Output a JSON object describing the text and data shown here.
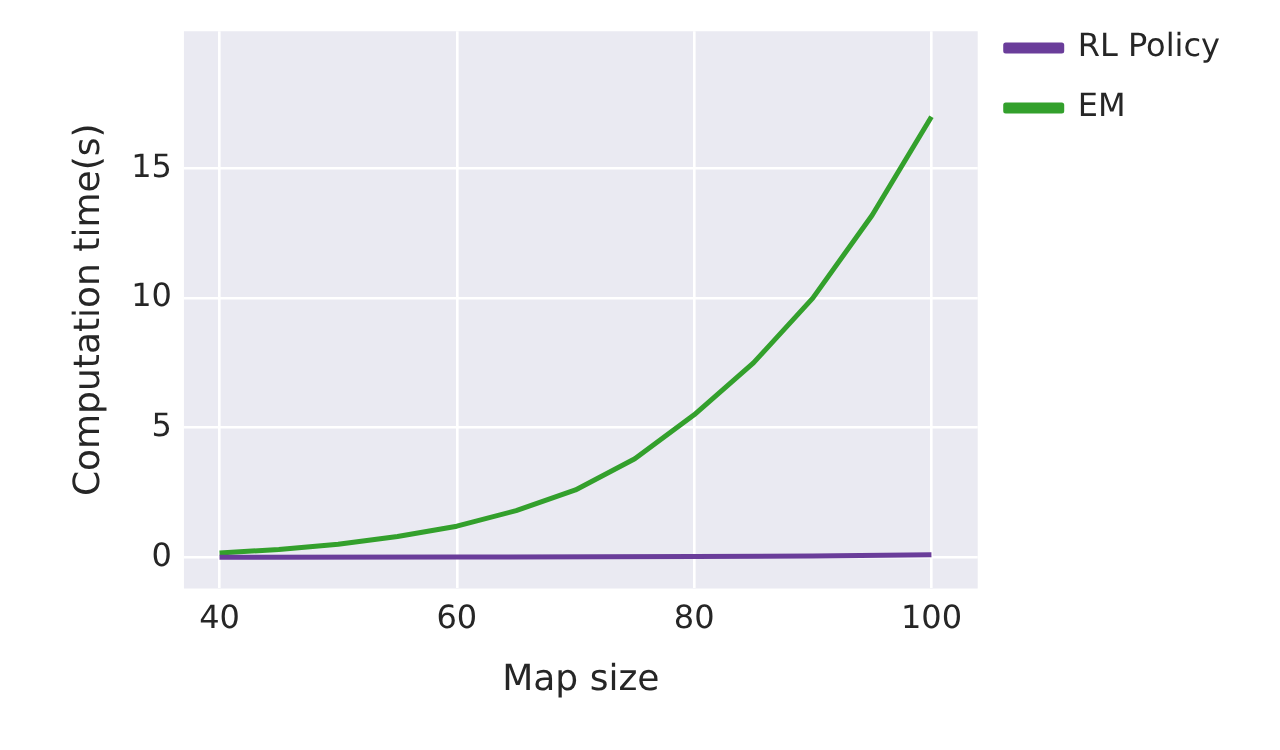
{
  "chart_data": {
    "type": "line",
    "xlabel": "Map size",
    "ylabel": "Computation time(s)",
    "xlim": [
      37,
      103.9
    ],
    "xticks": [
      40,
      60,
      80,
      100
    ],
    "ylim": [
      -1.2,
      20.3
    ],
    "yticks": [
      0,
      5,
      10,
      15
    ],
    "grid": true,
    "legend": "top right",
    "marker": "none",
    "line_style": "solid",
    "series": [
      {
        "name": "RL Policy",
        "color": "#6a3d9a",
        "x": [
          40,
          60,
          80,
          90,
          100
        ],
        "values": [
          0,
          0.01,
          0.03,
          0.05,
          0.1
        ]
      },
      {
        "name": "EM",
        "color": "#33a02c",
        "x": [
          40,
          45,
          50,
          55,
          60,
          65,
          70,
          75,
          80,
          85,
          90,
          95,
          100
        ],
        "values": [
          0.17,
          0.3,
          0.5,
          0.8,
          1.2,
          1.8,
          2.6,
          3.8,
          5.5,
          7.5,
          10,
          13.2,
          17
        ]
      }
    ]
  }
}
